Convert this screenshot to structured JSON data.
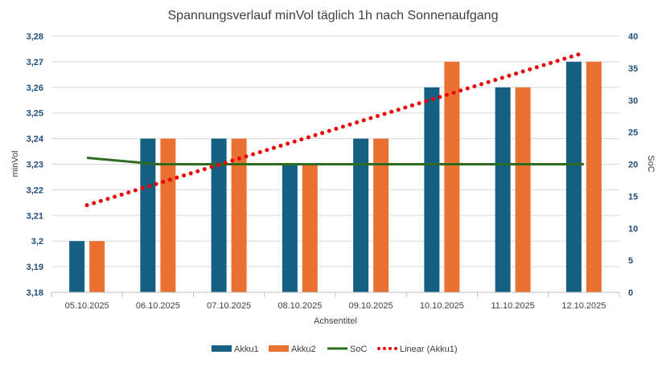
{
  "chart_data": {
    "type": "bar",
    "title": "Spannungsverlauf minVol  täglich 1h nach Sonnenaufgang",
    "xlabel": "Achsentitel",
    "ylabel": "minVol",
    "y2label": "SoC",
    "categories": [
      "05.10.2025",
      "06.10.2025",
      "07.10.2025",
      "08.10.2025",
      "09.10.2025",
      "10.10.2025",
      "11.10.2025",
      "12.10.2025"
    ],
    "ylim": [
      3.18,
      3.28
    ],
    "yticks": [
      "3,18",
      "3,19",
      "3,2",
      "3,21",
      "3,22",
      "3,23",
      "3,24",
      "3,25",
      "3,26",
      "3,27",
      "3,28"
    ],
    "y2lim": [
      0,
      40
    ],
    "y2ticks": [
      "0",
      "5",
      "10",
      "15",
      "20",
      "25",
      "30",
      "35",
      "40"
    ],
    "series": [
      {
        "name": "Akku1",
        "type": "bar",
        "axis": "left",
        "color": "#156082",
        "values": [
          3.2,
          3.24,
          3.24,
          3.23,
          3.24,
          3.26,
          3.26,
          3.27
        ]
      },
      {
        "name": "Akku2",
        "type": "bar",
        "axis": "left",
        "color": "#e97132",
        "values": [
          3.2,
          3.24,
          3.24,
          3.23,
          3.24,
          3.27,
          3.26,
          3.27
        ]
      },
      {
        "name": "SoC",
        "type": "line",
        "axis": "right",
        "color": "#2e6b1f",
        "values": [
          21,
          20,
          20,
          20,
          20,
          20,
          20,
          20
        ]
      },
      {
        "name": "Linear (Akku1)",
        "type": "trendline",
        "axis": "left",
        "color": "#ee0000",
        "from": 3.214,
        "to": 3.2735
      }
    ],
    "legend": "bottom",
    "grid": true
  }
}
